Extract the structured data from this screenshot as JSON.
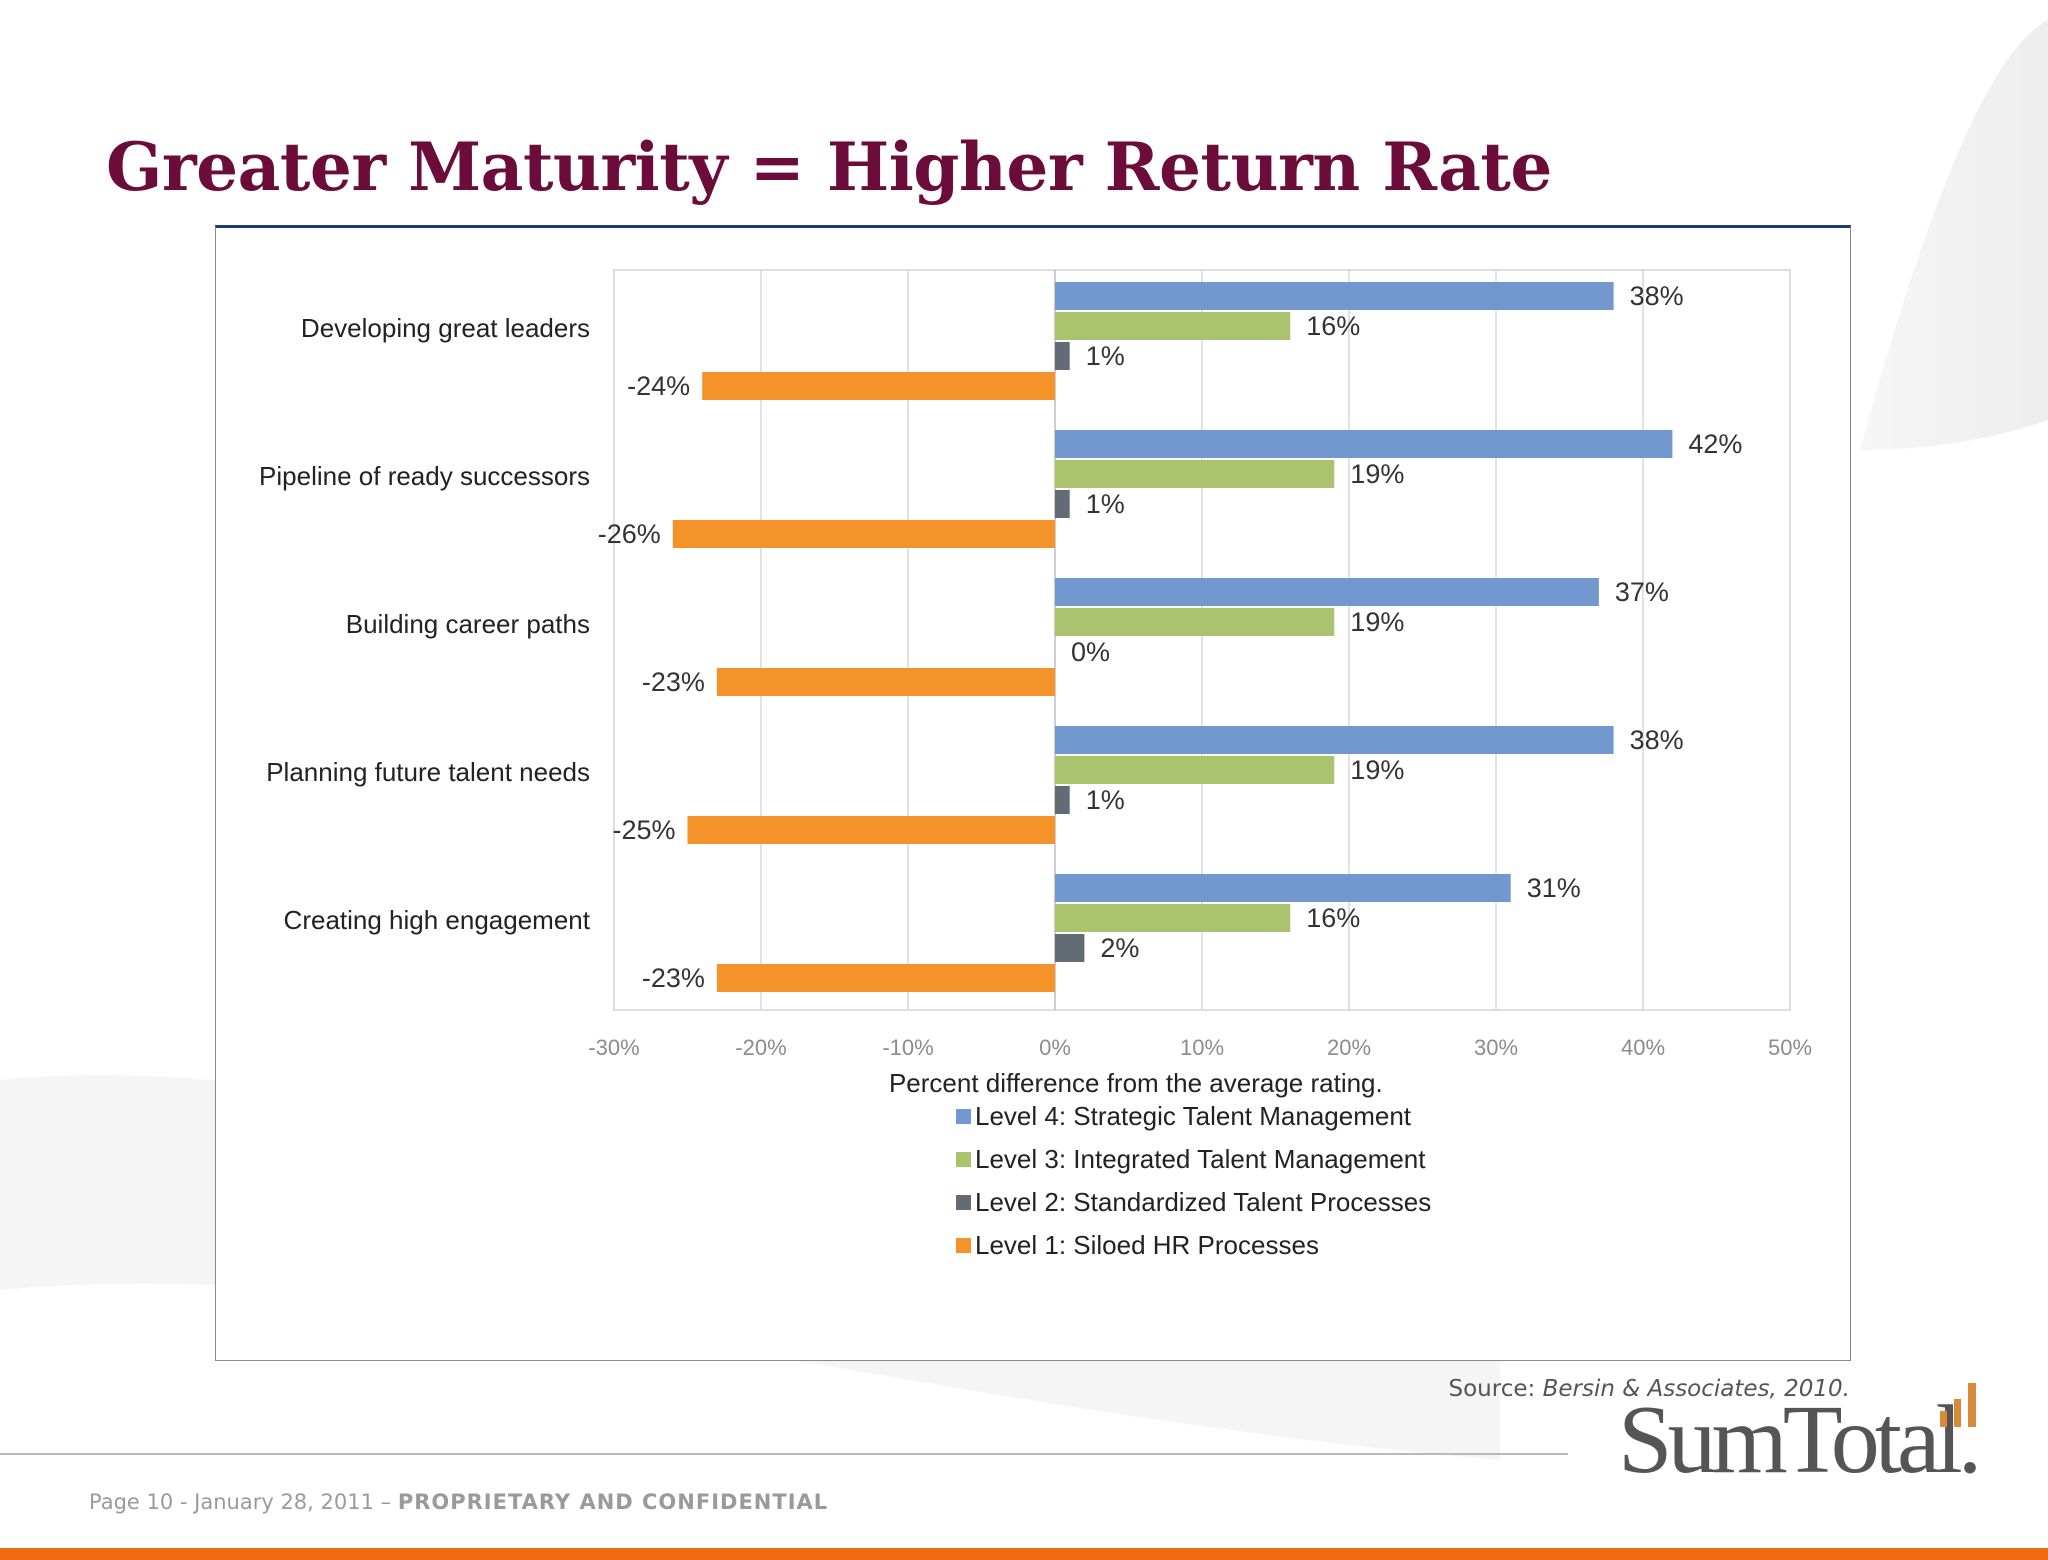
{
  "slide": {
    "title": "Greater Maturity = Higher Return Rate",
    "source_label": "Source: ",
    "source_text": "Bersin & Associates, 2010.",
    "logo": "SumTotal.",
    "footer_page": "Page 10 - January 28, 2011 – ",
    "footer_confidential": "PROPRIETARY AND CONFIDENTIAL",
    "colors": {
      "title": "#6b0c3a",
      "accent_bar": "#f26a10",
      "frame_top": "#1f3a73"
    }
  },
  "chart_data": {
    "type": "bar",
    "orientation": "horizontal",
    "categories": [
      "Developing great leaders",
      "Pipeline of ready successors",
      "Building career paths",
      "Planning future talent needs",
      "Creating high engagement"
    ],
    "series": [
      {
        "name": "Level 4: Strategic Talent Management",
        "color": "#7199cf",
        "values": [
          38,
          42,
          37,
          38,
          31
        ],
        "labels": [
          "38%",
          "42%",
          "37%",
          "38%",
          "31%"
        ]
      },
      {
        "name": "Level 3: Integrated Talent Management",
        "color": "#a9c46c",
        "values": [
          16,
          19,
          19,
          19,
          16
        ],
        "labels": [
          "16%",
          "19%",
          "19%",
          "19%",
          "16%"
        ]
      },
      {
        "name": "Level 2: Standardized Talent Processes",
        "color": "#636b75",
        "values": [
          1,
          1,
          0,
          1,
          2
        ],
        "labels": [
          "1%",
          "1%",
          "0%",
          "1%",
          "2%"
        ]
      },
      {
        "name": "Level 1: Siloed HR Processes",
        "color": "#f5932b",
        "values": [
          -24,
          -26,
          -23,
          -25,
          -23
        ],
        "labels": [
          "-24%",
          "-26%",
          "-23%",
          "-25%",
          "-23%"
        ]
      }
    ],
    "xlim": [
      -30,
      50
    ],
    "xticks": [
      -30,
      -20,
      -10,
      0,
      10,
      20,
      30,
      40,
      50
    ],
    "xtick_labels": [
      "-30%",
      "-20%",
      "-10%",
      "0%",
      "10%",
      "20%",
      "30%",
      "40%",
      "50%"
    ],
    "xlabel": "Percent difference from the average rating.",
    "ylabel": "",
    "grid": "vertical",
    "legend_position": "bottom-center"
  }
}
